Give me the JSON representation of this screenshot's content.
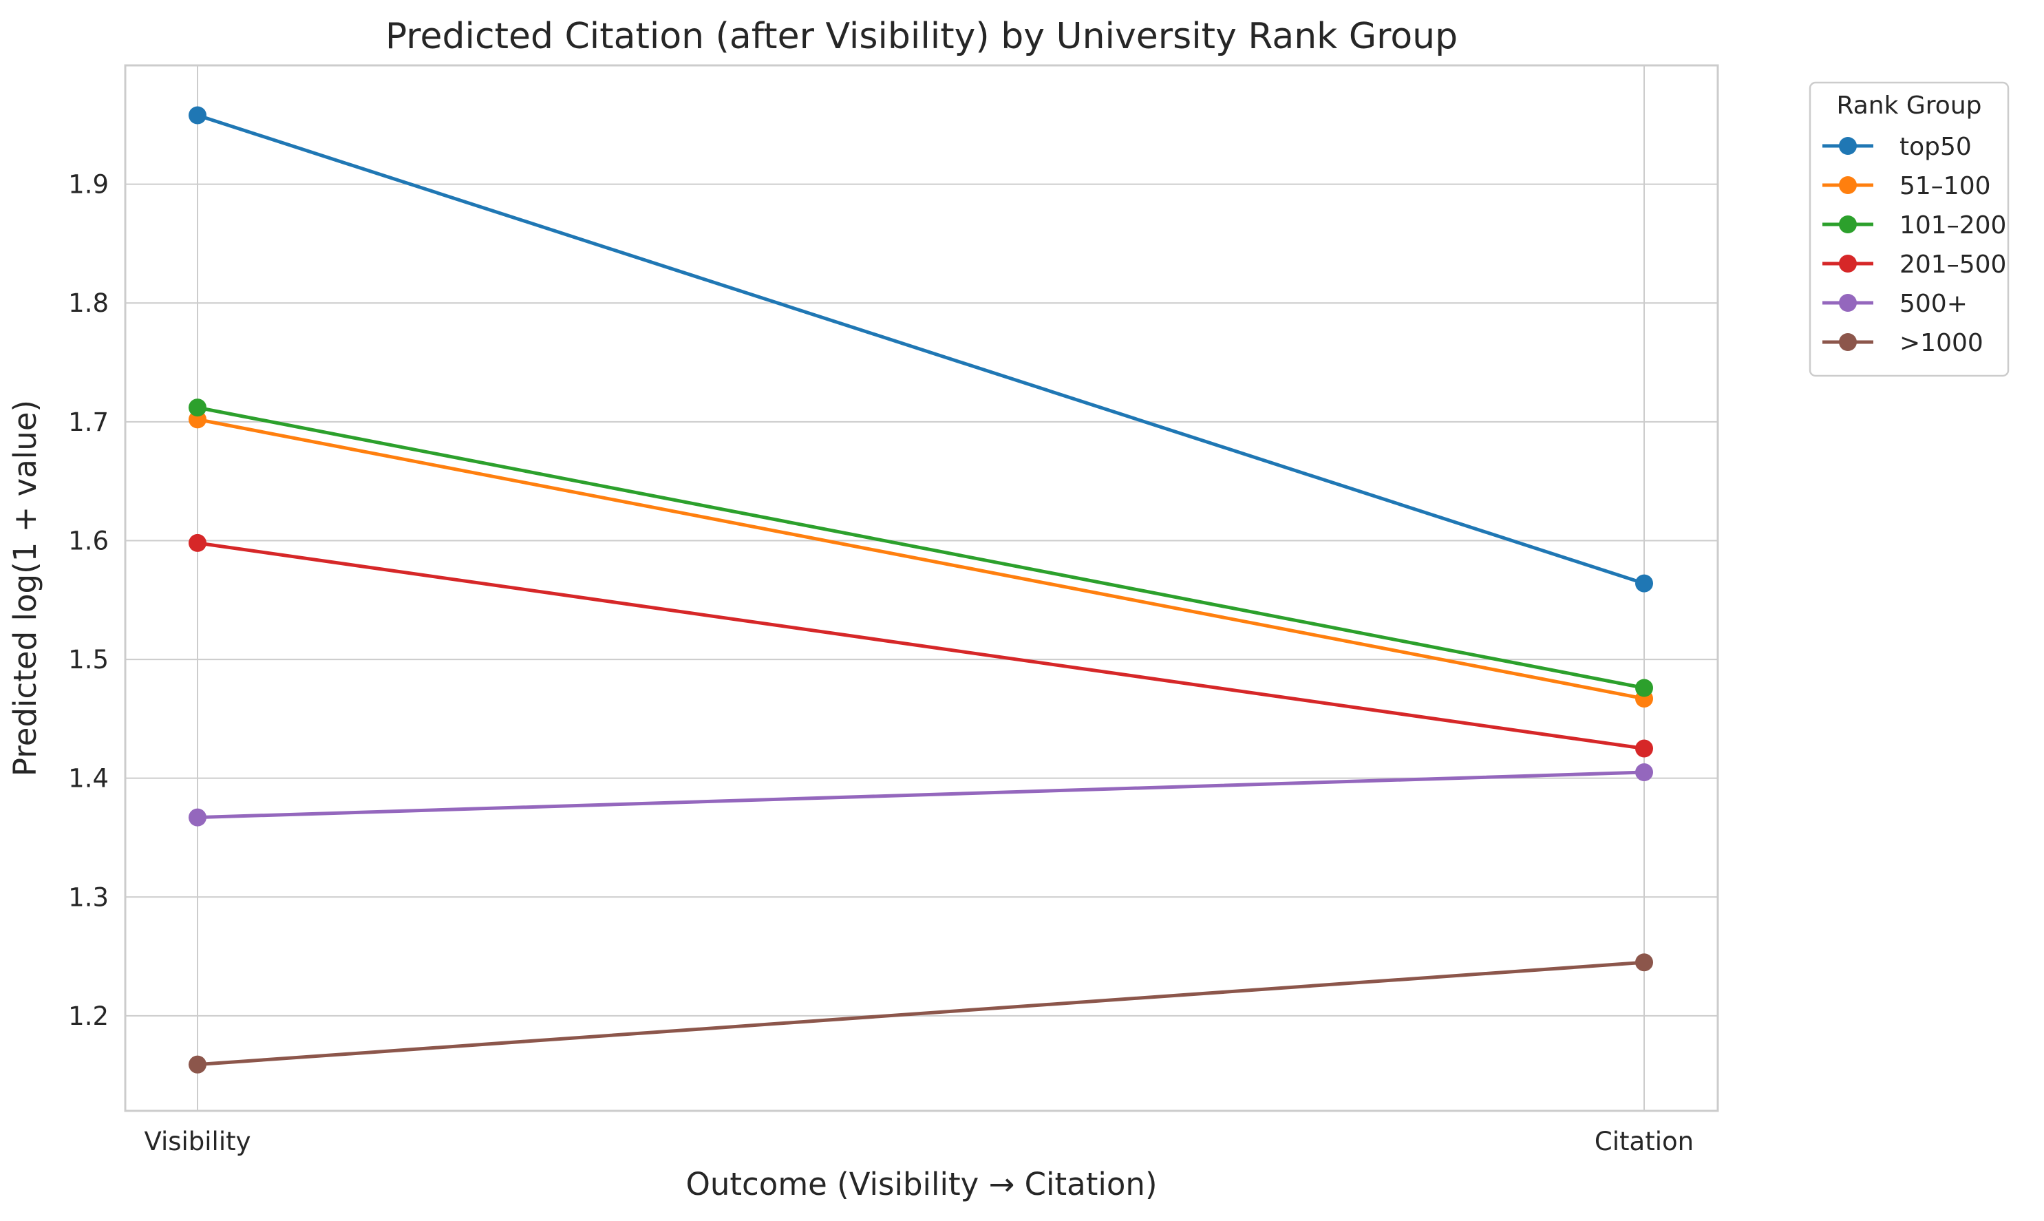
{
  "chart_data": {
    "type": "line",
    "title": "Predicted Citation (after Visibility) by University Rank Group",
    "xlabel": "Outcome (Visibility → Citation)",
    "ylabel": "Predicted log(1 + value)",
    "categories": [
      "Visibility",
      "Citation"
    ],
    "ylim": [
      1.12,
      2.0
    ],
    "yticks": [
      1.2,
      1.3,
      1.4,
      1.5,
      1.6,
      1.7,
      1.8,
      1.9
    ],
    "ytick_labels": [
      "1.2",
      "1.3",
      "1.4",
      "1.5",
      "1.6",
      "1.7",
      "1.8",
      "1.9"
    ],
    "grid": true,
    "legend_title": "Rank Group",
    "legend_position": "outside-top-right",
    "series": [
      {
        "name": "top50",
        "color": "#1f77b4",
        "values": [
          1.958,
          1.564
        ]
      },
      {
        "name": "51–100",
        "color": "#ff7f0e",
        "values": [
          1.702,
          1.467
        ]
      },
      {
        "name": "101–200",
        "color": "#2ca02c",
        "values": [
          1.712,
          1.476
        ]
      },
      {
        "name": "201–500",
        "color": "#d62728",
        "values": [
          1.598,
          1.425
        ]
      },
      {
        "name": "500+",
        "color": "#9467bd",
        "values": [
          1.367,
          1.405
        ]
      },
      {
        "name": ">1000",
        "color": "#8c564b",
        "values": [
          1.159,
          1.245
        ]
      }
    ]
  }
}
